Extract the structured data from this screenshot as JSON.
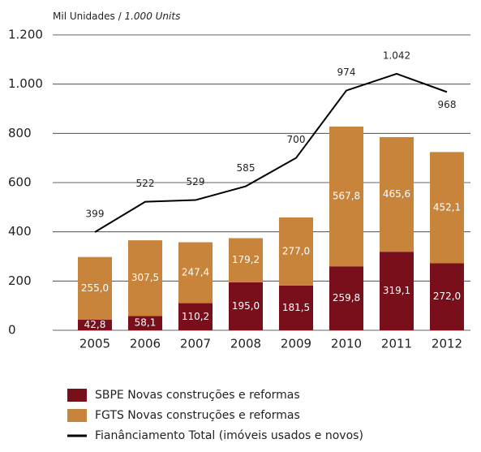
{
  "chart_data": {
    "type": "stacked-bar-line",
    "y_axis_label": {
      "main": "Mil Unidades /",
      "italic": "1.000 Units"
    },
    "categories": [
      "2005",
      "2006",
      "2007",
      "2008",
      "2009",
      "2010",
      "2011",
      "2012"
    ],
    "series": [
      {
        "name": "SBPE Novas construções e reformas",
        "color": "#7a0f1c",
        "values": [
          42.8,
          58.1,
          110.2,
          195.0,
          181.5,
          259.8,
          319.1,
          272.0
        ],
        "value_labels": [
          "42,8",
          "58,1",
          "110,2",
          "195,0",
          "181,5",
          "259,8",
          "319,1",
          "272,0"
        ]
      },
      {
        "name": "FGTS Novas construções e reformas",
        "color": "#c8843a",
        "values": [
          255.0,
          307.5,
          247.4,
          179.2,
          277.0,
          567.8,
          465.6,
          452.1
        ],
        "value_labels": [
          "255,0",
          "307,5",
          "247,4",
          "179,2",
          "277,0",
          "567,8",
          "465,6",
          "452,1"
        ]
      },
      {
        "name": "Fianânciamento Total (imóveis usados e novos)",
        "color": "#000000",
        "kind": "line",
        "values": [
          399,
          522,
          529,
          585,
          700,
          974,
          1042,
          968
        ],
        "value_labels": [
          "399",
          "522",
          "529",
          "585",
          "700",
          "974",
          "1.042",
          "968"
        ]
      }
    ],
    "ylim": [
      0,
      1200
    ],
    "yticks": [
      0,
      200,
      400,
      600,
      800,
      {
        "value": 1000,
        "label": "1.000"
      },
      {
        "value": 1200,
        "label": "1.200"
      }
    ],
    "grid": true
  }
}
